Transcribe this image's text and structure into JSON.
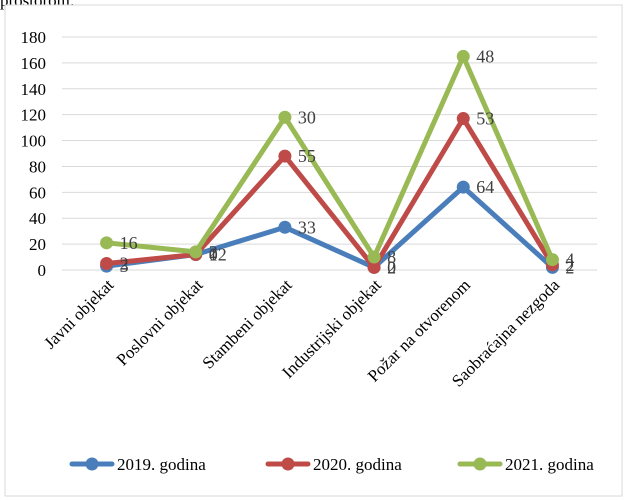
{
  "page_top_text": "prostorom:",
  "chart_data": {
    "type": "line",
    "categories": [
      "Javni objekat",
      "Poslovni objekat",
      "Stambeni objekat",
      "Industrijski objekat",
      "Požar na otvorenom",
      "Saobraćajna nezgoda"
    ],
    "series": [
      {
        "name": "2019. godina",
        "values": [
          3,
          12,
          33,
          2,
          64,
          2
        ],
        "color": "#4a7ebb"
      },
      {
        "name": "2020. godina",
        "values": [
          5,
          12,
          88,
          2,
          117,
          4
        ],
        "color": "#be4b48"
      },
      {
        "name": "2021. godina",
        "values": [
          21,
          14,
          118,
          10,
          165,
          8
        ],
        "color": "#98b954"
      }
    ],
    "data_labels": [
      [
        "3",
        "12",
        "33",
        "2",
        "64",
        "2"
      ],
      [
        "2",
        "0",
        "55",
        "0",
        "53",
        "2"
      ],
      [
        "16",
        "2",
        "30",
        "8",
        "48",
        "4"
      ]
    ],
    "yticks": [
      "0",
      "20",
      "40",
      "60",
      "80",
      "100",
      "120",
      "140",
      "160",
      "180"
    ],
    "ylim": [
      0,
      180
    ],
    "grid": true,
    "legend_position": "bottom"
  }
}
